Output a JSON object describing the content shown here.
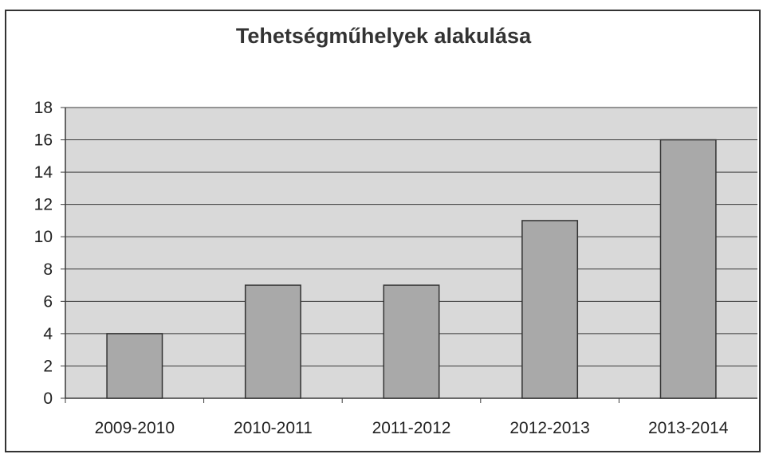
{
  "chart_data": {
    "type": "bar",
    "title": "Tehetségműhelyek alakulása",
    "categories": [
      "2009-2010",
      "2010-2011",
      "2011-2012",
      "2012-2013",
      "2013-2014"
    ],
    "values": [
      4,
      7,
      7,
      11,
      16
    ],
    "ylim": [
      0,
      18
    ],
    "yticks": [
      "0",
      "2",
      "4",
      "6",
      "8",
      "10",
      "12",
      "14",
      "16",
      "18"
    ],
    "grid": true,
    "legend": "none",
    "colors": {
      "bar_fill": "#a9a9a9",
      "bar_stroke": "#333333",
      "plot_bg": "#d9d9d9",
      "grid": "#3a3a3a"
    }
  }
}
